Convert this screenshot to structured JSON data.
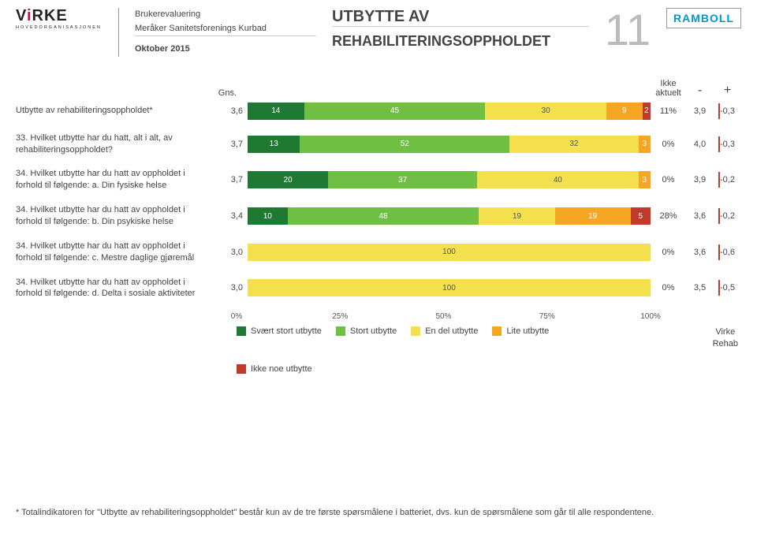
{
  "header": {
    "brand_word_pre": "V",
    "brand_word_mid": "i",
    "brand_word_post": "RKE",
    "brand_subline": "HOVEDORGANISASJONEN",
    "meta_line1": "Brukerevaluering",
    "meta_line2": "Meråker Sanitetsforenings Kurbad",
    "meta_date": "Oktober 2015",
    "title_line1": "UTBYTTE AV",
    "title_line2": "REHABILITERINGSOPPHOLDET",
    "page_number": "11",
    "right_logo": "RAMBOLL"
  },
  "columns": {
    "gns": "Gns.",
    "ikke_aktuelt": "Ikke aktuelt",
    "minus": "-",
    "plus": "+"
  },
  "colors": {
    "c1": "#1e7a32",
    "c2": "#6fbf44",
    "c3": "#f4e04d",
    "c4": "#f5a623",
    "c5": "#c0392b"
  },
  "rows": [
    {
      "label": "Utbytte av rehabiliteringsoppholdet*",
      "gns": "3,6",
      "segments": [
        {
          "v": 14,
          "c": "c1"
        },
        {
          "v": 45,
          "c": "c2"
        },
        {
          "v": 30,
          "c": "c3"
        },
        {
          "v": 9,
          "c": "c4"
        },
        {
          "v": 2,
          "c": "c5"
        }
      ],
      "na": "11%",
      "minus": "3,9",
      "plus": "-0,3"
    },
    {
      "label": "33. Hvilket utbytte har du hatt, alt i alt, av rehabiliteringsoppholdet?",
      "gns": "3,7",
      "segments": [
        {
          "v": 13,
          "c": "c1"
        },
        {
          "v": 52,
          "c": "c2"
        },
        {
          "v": 32,
          "c": "c3"
        },
        {
          "v": 3,
          "c": "c4"
        }
      ],
      "na": "0%",
      "minus": "4,0",
      "plus": "-0,3"
    },
    {
      "label": "34. Hvilket utbytte har du hatt av oppholdet i forhold til følgende: a. Din fysiske helse",
      "gns": "3,7",
      "segments": [
        {
          "v": 20,
          "c": "c1"
        },
        {
          "v": 37,
          "c": "c2"
        },
        {
          "v": 40,
          "c": "c3"
        },
        {
          "v": 3,
          "c": "c4"
        }
      ],
      "na": "0%",
      "minus": "3,9",
      "plus": "-0,2"
    },
    {
      "label": "34. Hvilket utbytte har du hatt av oppholdet i forhold til følgende: b. Din psykiske helse",
      "gns": "3,4",
      "segments": [
        {
          "v": 10,
          "c": "c1"
        },
        {
          "v": 48,
          "c": "c2"
        },
        {
          "v": 19,
          "c": "c3"
        },
        {
          "v": 19,
          "c": "c4"
        },
        {
          "v": 5,
          "c": "c5"
        }
      ],
      "na": "28%",
      "minus": "3,6",
      "plus": "-0,2"
    },
    {
      "label": "34. Hvilket utbytte har du hatt av oppholdet i forhold til følgende: c. Mestre daglige gjøremål",
      "gns": "3,0",
      "segments": [
        {
          "v": 100,
          "c": "c3"
        }
      ],
      "na": "0%",
      "minus": "3,6",
      "plus": "-0,6"
    },
    {
      "label": "34. Hvilket utbytte har du hatt av oppholdet i forhold til følgende: d. Delta i sosiale aktiviteter",
      "gns": "3,0",
      "segments": [
        {
          "v": 100,
          "c": "c3"
        }
      ],
      "na": "0%",
      "minus": "3,5",
      "plus": "-0,5"
    }
  ],
  "axis": {
    "ticks": [
      "0%",
      "25%",
      "50%",
      "75%",
      "100%"
    ]
  },
  "legend": {
    "items": [
      {
        "c": "c1",
        "label": "Svært stort utbytte"
      },
      {
        "c": "c2",
        "label": "Stort utbytte"
      },
      {
        "c": "c3",
        "label": "En del utbytte"
      },
      {
        "c": "c4",
        "label": "Lite utbytte"
      },
      {
        "c": "c5",
        "label": "Ikke noe utbytte"
      }
    ],
    "right_label_line1": "Virke",
    "right_label_line2": "Rehab"
  },
  "footnote": "* Totalindikatoren for \"Utbytte av rehabiliteringsoppholdet\" består kun av de tre første spørsmålene i batteriet, dvs. kun de spørsmålene som går til alle respondentene."
}
